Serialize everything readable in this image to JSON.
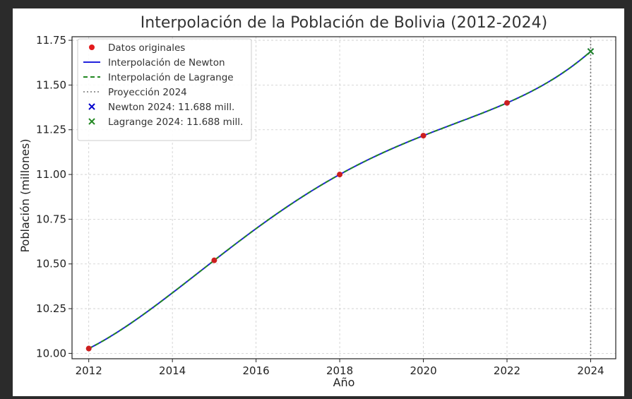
{
  "chart_data": {
    "type": "line",
    "title": "Interpolación de la Población de Bolivia (2012-2024)",
    "xlabel": "Año",
    "ylabel": "Población (millones)",
    "xlim": [
      2011.6,
      2024.6
    ],
    "ylim": [
      9.97,
      11.77
    ],
    "xticks": [
      2012,
      2014,
      2016,
      2018,
      2020,
      2022,
      2024
    ],
    "xtick_labels": [
      "2012",
      "2014",
      "2016",
      "2018",
      "2020",
      "2022",
      "2024"
    ],
    "yticks": [
      10.0,
      10.25,
      10.5,
      10.75,
      11.0,
      11.25,
      11.5,
      11.75
    ],
    "ytick_labels": [
      "10.00",
      "10.25",
      "10.50",
      "10.75",
      "11.00",
      "11.25",
      "11.50",
      "11.75"
    ],
    "grid": true,
    "legend_position": "top-left",
    "series": [
      {
        "name": "Datos originales",
        "kind": "scatter",
        "color": "#e31a1c",
        "x": [
          2012,
          2015,
          2018,
          2020,
          2022
        ],
        "y": [
          10.027,
          10.52,
          11.0,
          11.217,
          11.4
        ]
      },
      {
        "name": "Interpolación de Newton",
        "kind": "line",
        "style": "solid",
        "color": "#2222dd"
      },
      {
        "name": "Interpolación de Lagrange",
        "kind": "line",
        "style": "dashed",
        "color": "#228822"
      },
      {
        "name": "Proyección 2024",
        "kind": "vline",
        "style": "dotted",
        "color": "#777777",
        "x": 2024
      },
      {
        "name": "Newton 2024: 11.688 mill.",
        "kind": "marker-x",
        "color": "#0000cc",
        "x": [
          2024
        ],
        "y": [
          11.688
        ]
      },
      {
        "name": "Lagrange 2024: 11.688 mill.",
        "kind": "marker-x",
        "color": "#228822",
        "x": [
          2024
        ],
        "y": [
          11.688
        ]
      }
    ]
  },
  "colors": {
    "frame": "#2b2b2b",
    "background": "#ffffff",
    "grid": "#cccccc",
    "axis": "#222222"
  }
}
